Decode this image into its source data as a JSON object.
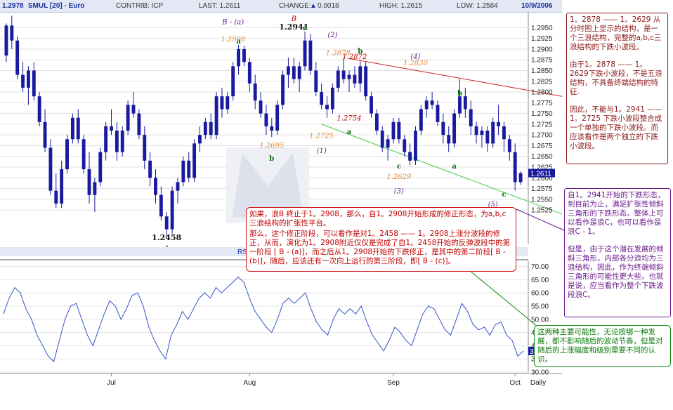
{
  "header": {
    "top_price": "1.2978",
    "symbol": "SMUL [20] - Euro",
    "contrib": "CONTRIB: ICP",
    "last": "LAST: 1.2611",
    "change_label": "CHANGE:",
    "change_value": "0.0018",
    "high": "HIGH: 1.2615",
    "low": "LOW: 1.2584",
    "date": "10/9/2006"
  },
  "colors": {
    "candle": "#1a1aa0",
    "wave_red": "#c00000",
    "wave_orange": "#e08a3c",
    "wave_green": "#0a6a0a",
    "wave_purple": "#6a1a8a",
    "rsi_line": "#3355cc",
    "trend_red": "#cc2020",
    "trend_green": "#44cc44"
  },
  "chart_data": {
    "type": "candlestick",
    "price_axis": {
      "ylim": [
        1.2445,
        1.2985
      ],
      "ticks": [
        "1.2950",
        "1.2925",
        "1.2900",
        "1.2875",
        "1.2850",
        "1.2825",
        "1.2800",
        "1.2775",
        "1.2750",
        "1.2725",
        "1.2700",
        "1.2675",
        "1.2650",
        "1.2625",
        "1.2600",
        "1.2575",
        "1.2550",
        "1.2525"
      ],
      "last_price_label": "1.2611"
    },
    "x_axis": {
      "labels": [
        "Jul",
        "Aug",
        "Sep",
        "Oct",
        "Daily"
      ],
      "label_index": [
        19,
        44,
        70,
        92,
        100
      ]
    },
    "candles": [
      [
        1.2885,
        1.296,
        1.287,
        1.2955
      ],
      [
        1.2955,
        1.2978,
        1.29,
        1.292
      ],
      [
        1.292,
        1.293,
        1.283,
        1.284
      ],
      [
        1.284,
        1.287,
        1.28,
        1.281
      ],
      [
        1.281,
        1.286,
        1.277,
        1.285
      ],
      [
        1.285,
        1.287,
        1.278,
        1.279
      ],
      [
        1.279,
        1.28,
        1.272,
        1.273
      ],
      [
        1.273,
        1.276,
        1.266,
        1.267
      ],
      [
        1.267,
        1.269,
        1.256,
        1.257
      ],
      [
        1.257,
        1.261,
        1.253,
        1.254
      ],
      [
        1.254,
        1.264,
        1.253,
        1.262
      ],
      [
        1.262,
        1.27,
        1.261,
        1.269
      ],
      [
        1.269,
        1.275,
        1.268,
        1.274
      ],
      [
        1.274,
        1.276,
        1.268,
        1.269
      ],
      [
        1.269,
        1.27,
        1.261,
        1.262
      ],
      [
        1.262,
        1.266,
        1.254,
        1.256
      ],
      [
        1.256,
        1.26,
        1.252,
        1.259
      ],
      [
        1.259,
        1.267,
        1.258,
        1.266
      ],
      [
        1.266,
        1.273,
        1.264,
        1.272
      ],
      [
        1.272,
        1.276,
        1.27,
        1.271
      ],
      [
        1.271,
        1.273,
        1.264,
        1.266
      ],
      [
        1.266,
        1.272,
        1.265,
        1.271
      ],
      [
        1.271,
        1.278,
        1.27,
        1.277
      ],
      [
        1.277,
        1.28,
        1.274,
        1.275
      ],
      [
        1.275,
        1.276,
        1.269,
        1.27
      ],
      [
        1.27,
        1.272,
        1.262,
        1.264
      ],
      [
        1.264,
        1.266,
        1.258,
        1.26
      ],
      [
        1.26,
        1.262,
        1.254,
        1.256
      ],
      [
        1.256,
        1.258,
        1.25,
        1.251
      ],
      [
        1.251,
        1.252,
        1.246,
        1.248
      ],
      [
        1.248,
        1.258,
        1.247,
        1.257
      ],
      [
        1.257,
        1.26,
        1.254,
        1.259
      ],
      [
        1.259,
        1.265,
        1.258,
        1.264
      ],
      [
        1.264,
        1.266,
        1.259,
        1.26
      ],
      [
        1.26,
        1.269,
        1.259,
        1.268
      ],
      [
        1.268,
        1.272,
        1.266,
        1.27
      ],
      [
        1.27,
        1.274,
        1.269,
        1.273
      ],
      [
        1.273,
        1.275,
        1.269,
        1.27
      ],
      [
        1.27,
        1.28,
        1.269,
        1.279
      ],
      [
        1.279,
        1.281,
        1.274,
        1.276
      ],
      [
        1.276,
        1.28,
        1.275,
        1.279
      ],
      [
        1.279,
        1.287,
        1.278,
        1.286
      ],
      [
        1.286,
        1.291,
        1.284,
        1.29
      ],
      [
        1.29,
        1.2908,
        1.286,
        1.287
      ],
      [
        1.287,
        1.288,
        1.28,
        1.282
      ],
      [
        1.282,
        1.284,
        1.276,
        1.278
      ],
      [
        1.278,
        1.28,
        1.274,
        1.275
      ],
      [
        1.275,
        1.277,
        1.27,
        1.272
      ],
      [
        1.272,
        1.274,
        1.2695,
        1.271
      ],
      [
        1.271,
        1.278,
        1.27,
        1.277
      ],
      [
        1.277,
        1.285,
        1.276,
        1.284
      ],
      [
        1.284,
        1.288,
        1.281,
        1.286
      ],
      [
        1.286,
        1.288,
        1.282,
        1.283
      ],
      [
        1.283,
        1.287,
        1.28,
        1.286
      ],
      [
        1.286,
        1.2941,
        1.285,
        1.292
      ],
      [
        1.292,
        1.2935,
        1.284,
        1.285
      ],
      [
        1.285,
        1.287,
        1.279,
        1.28
      ],
      [
        1.28,
        1.282,
        1.276,
        1.277
      ],
      [
        1.277,
        1.279,
        1.274,
        1.276
      ],
      [
        1.276,
        1.282,
        1.275,
        1.281
      ],
      [
        1.281,
        1.286,
        1.28,
        1.285
      ],
      [
        1.285,
        1.2878,
        1.282,
        1.283
      ],
      [
        1.283,
        1.285,
        1.28,
        1.284
      ],
      [
        1.284,
        1.286,
        1.281,
        1.282
      ],
      [
        1.282,
        1.2872,
        1.28,
        1.286
      ],
      [
        1.286,
        1.287,
        1.278,
        1.279
      ],
      [
        1.279,
        1.28,
        1.274,
        1.275
      ],
      [
        1.275,
        1.276,
        1.27,
        1.271
      ],
      [
        1.271,
        1.272,
        1.266,
        1.267
      ],
      [
        1.267,
        1.27,
        1.264,
        1.269
      ],
      [
        1.269,
        1.274,
        1.268,
        1.273
      ],
      [
        1.273,
        1.274,
        1.268,
        1.269
      ],
      [
        1.269,
        1.27,
        1.265,
        1.266
      ],
      [
        1.266,
        1.268,
        1.2629,
        1.264
      ],
      [
        1.264,
        1.272,
        1.263,
        1.271
      ],
      [
        1.271,
        1.277,
        1.27,
        1.276
      ],
      [
        1.276,
        1.279,
        1.274,
        1.278
      ],
      [
        1.278,
        1.28,
        1.276,
        1.277
      ],
      [
        1.277,
        1.278,
        1.272,
        1.273
      ],
      [
        1.273,
        1.275,
        1.268,
        1.27
      ],
      [
        1.27,
        1.272,
        1.266,
        1.268
      ],
      [
        1.268,
        1.276,
        1.267,
        1.275
      ],
      [
        1.275,
        1.283,
        1.274,
        1.279
      ],
      [
        1.279,
        1.281,
        1.274,
        1.276
      ],
      [
        1.276,
        1.278,
        1.27,
        1.272
      ],
      [
        1.272,
        1.273,
        1.268,
        1.27
      ],
      [
        1.27,
        1.272,
        1.267,
        1.271
      ],
      [
        1.271,
        1.272,
        1.266,
        1.268
      ],
      [
        1.268,
        1.274,
        1.267,
        1.273
      ],
      [
        1.273,
        1.277,
        1.27,
        1.272
      ],
      [
        1.272,
        1.273,
        1.266,
        1.269
      ],
      [
        1.269,
        1.27,
        1.264,
        1.266
      ],
      [
        1.266,
        1.268,
        1.257,
        1.259
      ],
      [
        1.259,
        1.2615,
        1.2584,
        1.2611
      ]
    ],
    "wave_labels": [
      {
        "text": "B - (a)",
        "i": 41,
        "price": 1.2958,
        "color": "purple"
      },
      {
        "text": "1.2908",
        "i": 41,
        "price": 1.2918,
        "color": "orange"
      },
      {
        "text": "a",
        "i": 42,
        "price": 1.2913,
        "color": "green"
      },
      {
        "text": "B",
        "i": 52,
        "price": 1.2965,
        "color": "red"
      },
      {
        "text": "1.2941",
        "i": 52,
        "price": 1.2946,
        "color": "dark"
      },
      {
        "text": "c",
        "i": 54,
        "price": 1.2944,
        "color": "green"
      },
      {
        "text": "(2)",
        "i": 59,
        "price": 1.2928,
        "color": "purple"
      },
      {
        "text": "1.2878",
        "i": 60,
        "price": 1.2886,
        "color": "orange"
      },
      {
        "text": "b",
        "i": 64,
        "price": 1.289,
        "color": "green"
      },
      {
        "text": "1.2872",
        "i": 63,
        "price": 1.2877,
        "color": "red"
      },
      {
        "text": "(4)",
        "i": 74,
        "price": 1.2878,
        "color": "purple"
      },
      {
        "text": "1.2830",
        "i": 74,
        "price": 1.2862,
        "color": "orange"
      },
      {
        "text": "b",
        "i": 82,
        "price": 1.2792,
        "color": "green"
      },
      {
        "text": "1.2754",
        "i": 62,
        "price": 1.2734,
        "color": "red"
      },
      {
        "text": "a",
        "i": 62,
        "price": 1.2702,
        "color": "green"
      },
      {
        "text": "1.2725",
        "i": 57,
        "price": 1.2693,
        "color": "orange"
      },
      {
        "text": "(1)",
        "i": 57,
        "price": 1.2658,
        "color": "purple"
      },
      {
        "text": "1.2695",
        "i": 48,
        "price": 1.267,
        "color": "orange"
      },
      {
        "text": "b",
        "i": 48,
        "price": 1.264,
        "color": "green"
      },
      {
        "text": "c",
        "i": 71,
        "price": 1.2622,
        "color": "green"
      },
      {
        "text": "1.2629",
        "i": 71,
        "price": 1.2597,
        "color": "orange"
      },
      {
        "text": "a",
        "i": 81,
        "price": 1.2622,
        "color": "green"
      },
      {
        "text": "(3)",
        "i": 71,
        "price": 1.2564,
        "color": "purple"
      },
      {
        "text": "c",
        "i": 90,
        "price": 1.2556,
        "color": "green"
      },
      {
        "text": "(5)",
        "i": 88,
        "price": 1.2533,
        "color": "purple"
      },
      {
        "text": "B - (b)",
        "i": 90,
        "price": 1.2468,
        "color": "purple"
      },
      {
        "text": "1.2458",
        "i": 29,
        "price": 1.2455,
        "color": "dark"
      },
      {
        "text": "A",
        "i": 29,
        "price": 1.243,
        "color": "red"
      }
    ],
    "trendlines": [
      {
        "color": "red",
        "from": [
          62,
          1.2878
        ],
        "to": [
          100,
          1.2791
        ]
      },
      {
        "color": "green",
        "from": [
          57,
          1.2725
        ],
        "to": [
          100,
          1.2518
        ]
      }
    ],
    "rsi": {
      "label": "RSI",
      "ylim": [
        30,
        72
      ],
      "ticks": [
        "70.00",
        "65.00",
        "60.00",
        "55.00",
        "50.00",
        "45.00",
        "40.00",
        "35.00",
        "30.00"
      ],
      "last_value_label": "38",
      "values": [
        52,
        58,
        62,
        60,
        54,
        50,
        44,
        40,
        36,
        34,
        42,
        50,
        55,
        56,
        50,
        44,
        40,
        46,
        52,
        57,
        55,
        50,
        54,
        59,
        60,
        55,
        47,
        42,
        38,
        35,
        44,
        48,
        53,
        50,
        54,
        58,
        60,
        58,
        62,
        60,
        62,
        64,
        66,
        64,
        58,
        53,
        50,
        47,
        45,
        50,
        56,
        58,
        56,
        58,
        60,
        54,
        49,
        46,
        44,
        50,
        54,
        52,
        54,
        52,
        55,
        49,
        44,
        41,
        38,
        42,
        47,
        45,
        42,
        40,
        46,
        52,
        55,
        54,
        50,
        46,
        44,
        50,
        56,
        53,
        48,
        46,
        47,
        44,
        48,
        49,
        44,
        42,
        36,
        38
      ]
    }
  },
  "annotations": {
    "note1": [
      "1。2878 —— 1。2629 从分时图上显示的结构，是一个三浪结构，完整的a,b,c三浪结构的下跌小波段。",
      "由于1。2878 —— 1。2629下跌小波段，不是五浪结构，不具备终端结构的特征.",
      "因此，不能与1。2941 —— 1。2725 下跌小波段整合成一个单独的下跌小波段。而应该看作是两个独立的下跌小波段。"
    ],
    "note2": [
      "自1。2941开始的下跌形态，到目前为止，满足扩张性倾斜三角形的下跌形态。整体上可以看作是浪C，也可以看作是浪C - 1。",
      "但是，由于这个潜在发展的倾斜三角形，内部各分浪均为三浪结构，因此，作为终端倾斜三角形的可能性更大些。也就是说，应当看作为整个下跌波段浪C。"
    ],
    "note3": [
      "如果，浪B 终止于1。2908，那么，自1。2908开始形成的修正形态，为a,b,c三浪结构的扩张性平台。",
      "那么，这个修正阶段，可以看作是对1。2458 —— 1。2908上涨分波段的修正，从而，演化为1。2908附近仅仅是完成了自1。2458开始的反弹波段中的第一阶段 [ B - (a)]，而之后从1。2908开始的下跌修正，是其中的第二阶段[ B - (b)]，随后，应该还有一次向上运行的第三阶段，即[ B - (c)]。"
    ],
    "note4": [
      "这两种主要可能性，无论按哪一种发展，都不影响随后的波动节奏，但是对随后的上涨幅度和级别需要不同的认识。"
    ]
  }
}
